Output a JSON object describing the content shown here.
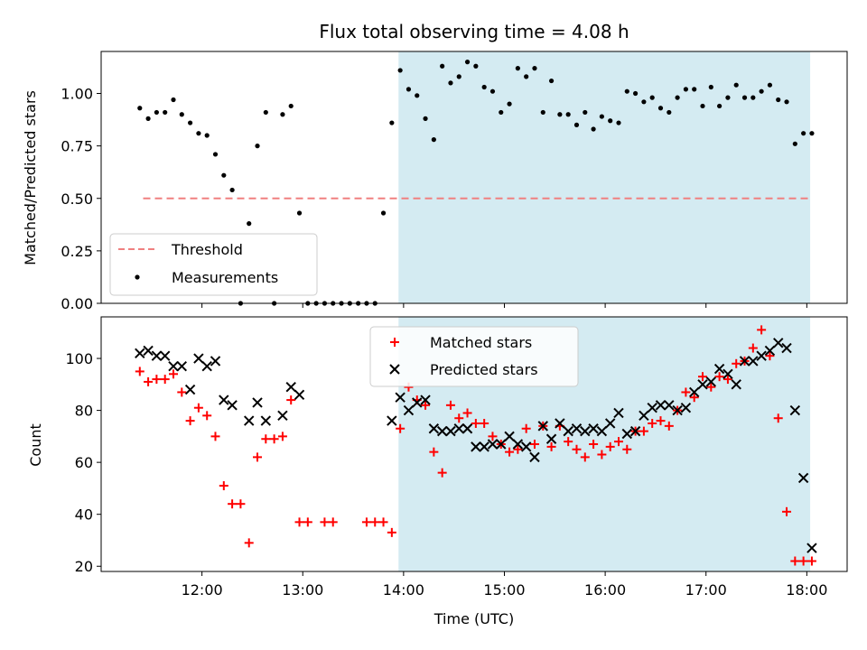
{
  "chart_data": [
    {
      "type": "scatter",
      "title": "Flux total observing time = 4.08 h",
      "xlabel": "",
      "ylabel": "Matched/Predicted stars",
      "xlim": [
        11.0,
        18.4
      ],
      "ylim": [
        0.0,
        1.2
      ],
      "yticks": [
        "0.00",
        "0.25",
        "0.50",
        "0.75",
        "1.00"
      ],
      "ytick_values": [
        0.0,
        0.25,
        0.5,
        0.75,
        1.0
      ],
      "shaded_region": {
        "x_start": "13:57",
        "x_end": "18:02",
        "color": "#d4ebf2"
      },
      "threshold": {
        "name": "Threshold",
        "value": 0.5,
        "x_start": "11:25",
        "x_end": "18:02",
        "color": "#f08080"
      },
      "legend": {
        "placement": "lower-left",
        "entries": [
          "Threshold",
          "Measurements"
        ]
      },
      "series": [
        {
          "name": "Measurements",
          "color": "#000000",
          "x": [
            "11:23",
            "11:28",
            "11:33",
            "11:38",
            "11:43",
            "11:48",
            "11:53",
            "11:58",
            "12:03",
            "12:08",
            "12:13",
            "12:18",
            "12:23",
            "12:28",
            "12:33",
            "12:38",
            "12:43",
            "12:48",
            "12:53",
            "12:58",
            "13:03",
            "13:08",
            "13:13",
            "13:18",
            "13:23",
            "13:28",
            "13:33",
            "13:38",
            "13:43",
            "13:48",
            "13:53",
            "13:58",
            "14:03",
            "14:08",
            "14:13",
            "14:18",
            "14:23",
            "14:28",
            "14:33",
            "14:38",
            "14:43",
            "14:48",
            "14:53",
            "14:58",
            "15:03",
            "15:08",
            "15:13",
            "15:18",
            "15:23",
            "15:28",
            "15:33",
            "15:38",
            "15:43",
            "15:48",
            "15:53",
            "15:58",
            "16:03",
            "16:08",
            "16:13",
            "16:18",
            "16:23",
            "16:28",
            "16:33",
            "16:38",
            "16:43",
            "16:48",
            "16:53",
            "16:58",
            "17:03",
            "17:08",
            "17:13",
            "17:18",
            "17:23",
            "17:28",
            "17:33",
            "17:38",
            "17:43",
            "17:48",
            "17:53",
            "17:58",
            "18:03"
          ],
          "y": [
            0.93,
            0.88,
            0.91,
            0.91,
            0.97,
            0.9,
            0.86,
            0.81,
            0.8,
            0.71,
            0.61,
            0.54,
            0.0,
            0.38,
            0.75,
            0.91,
            0.0,
            0.9,
            0.94,
            0.43,
            0.0,
            0.0,
            0.0,
            0.0,
            0.0,
            0.0,
            0.0,
            0.0,
            0.0,
            0.43,
            0.86,
            1.11,
            1.02,
            0.99,
            0.88,
            0.78,
            1.13,
            1.05,
            1.08,
            1.15,
            1.13,
            1.03,
            1.01,
            0.91,
            0.95,
            1.12,
            1.08,
            1.12,
            0.91,
            1.06,
            0.9,
            0.9,
            0.85,
            0.91,
            0.83,
            0.89,
            0.87,
            0.86,
            1.01,
            1.0,
            0.96,
            0.98,
            0.93,
            0.91,
            0.98,
            1.02,
            1.02,
            0.94,
            1.03,
            0.94,
            0.98,
            1.04,
            0.98,
            0.98,
            1.01,
            1.04,
            0.97,
            0.96,
            0.76,
            0.81,
            0.81
          ]
        }
      ]
    },
    {
      "type": "scatter",
      "title": "",
      "xlabel": "Time (UTC)",
      "ylabel": "Count",
      "xlim": [
        11.0,
        18.4
      ],
      "ylim": [
        18,
        116
      ],
      "xticks": [
        "12:00",
        "13:00",
        "14:00",
        "15:00",
        "16:00",
        "17:00",
        "18:00"
      ],
      "yticks": [
        "20",
        "40",
        "60",
        "80",
        "100"
      ],
      "ytick_values": [
        20,
        40,
        60,
        80,
        100
      ],
      "shaded_region": {
        "x_start": "13:57",
        "x_end": "18:02",
        "color": "#d4ebf2"
      },
      "legend": {
        "placement": "upper-center",
        "entries": [
          "Matched stars",
          "Predicted stars"
        ]
      },
      "series": [
        {
          "name": "Matched stars",
          "marker": "plus",
          "color": "#ff0000",
          "x": [
            "11:23",
            "11:28",
            "11:33",
            "11:38",
            "11:43",
            "11:48",
            "11:53",
            "11:58",
            "12:03",
            "12:08",
            "12:13",
            "12:18",
            "12:23",
            "12:28",
            "12:33",
            "12:38",
            "12:43",
            "12:48",
            "12:53",
            "12:58",
            "13:03",
            "13:13",
            "13:18",
            "13:38",
            "13:43",
            "13:48",
            "13:53",
            "13:58",
            "14:03",
            "14:08",
            "14:13",
            "14:18",
            "14:23",
            "14:28",
            "14:33",
            "14:38",
            "14:43",
            "14:48",
            "14:53",
            "14:58",
            "15:03",
            "15:08",
            "15:13",
            "15:18",
            "15:23",
            "15:28",
            "15:33",
            "15:38",
            "15:43",
            "15:48",
            "15:53",
            "15:58",
            "16:03",
            "16:08",
            "16:13",
            "16:18",
            "16:23",
            "16:28",
            "16:33",
            "16:38",
            "16:43",
            "16:48",
            "16:53",
            "16:58",
            "17:03",
            "17:08",
            "17:13",
            "17:18",
            "17:23",
            "17:28",
            "17:33",
            "17:38",
            "17:43",
            "17:48",
            "17:53",
            "17:58",
            "18:03"
          ],
          "y": [
            95,
            91,
            92,
            92,
            94,
            87,
            76,
            81,
            78,
            70,
            51,
            44,
            44,
            29,
            62,
            69,
            69,
            70,
            84,
            37,
            37,
            37,
            37,
            37,
            37,
            37,
            33,
            73,
            89,
            84,
            82,
            64,
            56,
            82,
            77,
            79,
            75,
            75,
            70,
            67,
            64,
            65,
            73,
            67,
            74,
            66,
            74,
            68,
            65,
            62,
            67,
            63,
            66,
            68,
            65,
            72,
            72,
            75,
            76,
            74,
            80,
            87,
            85,
            93,
            89,
            93,
            92,
            98,
            99,
            104,
            111,
            101,
            77,
            41,
            22,
            22,
            22
          ],
          "note_hidden": ""
        },
        {
          "name": "Predicted stars",
          "marker": "x",
          "color": "#000000",
          "x": [
            "11:23",
            "11:28",
            "11:33",
            "11:38",
            "11:43",
            "11:48",
            "11:53",
            "11:58",
            "12:03",
            "12:08",
            "12:13",
            "12:18",
            "12:28",
            "12:33",
            "12:38",
            "12:48",
            "12:53",
            "12:58",
            "13:53",
            "13:58",
            "14:03",
            "14:08",
            "14:13",
            "14:18",
            "14:23",
            "14:28",
            "14:33",
            "14:38",
            "14:43",
            "14:48",
            "14:53",
            "14:58",
            "15:03",
            "15:08",
            "15:13",
            "15:18",
            "15:23",
            "15:28",
            "15:33",
            "15:38",
            "15:43",
            "15:48",
            "15:53",
            "15:58",
            "16:03",
            "16:08",
            "16:13",
            "16:18",
            "16:23",
            "16:28",
            "16:33",
            "16:38",
            "16:43",
            "16:48",
            "16:53",
            "16:58",
            "17:03",
            "17:08",
            "17:13",
            "17:18",
            "17:23",
            "17:28",
            "17:33",
            "17:38",
            "17:43",
            "17:48",
            "17:53",
            "17:58",
            "18:03"
          ],
          "y": [
            102,
            103,
            101,
            101,
            97,
            97,
            88,
            100,
            97,
            99,
            84,
            82,
            76,
            83,
            76,
            78,
            89,
            86,
            76,
            85,
            80,
            83,
            84,
            73,
            72,
            72,
            73,
            73,
            66,
            66,
            67,
            67,
            70,
            67,
            66,
            62,
            74,
            69,
            75,
            72,
            73,
            72,
            73,
            72,
            75,
            79,
            71,
            72,
            78,
            81,
            82,
            82,
            80,
            81,
            87,
            90,
            91,
            96,
            94,
            90,
            99,
            99,
            101,
            103,
            106,
            104,
            80,
            54,
            27
          ]
        }
      ]
    }
  ]
}
